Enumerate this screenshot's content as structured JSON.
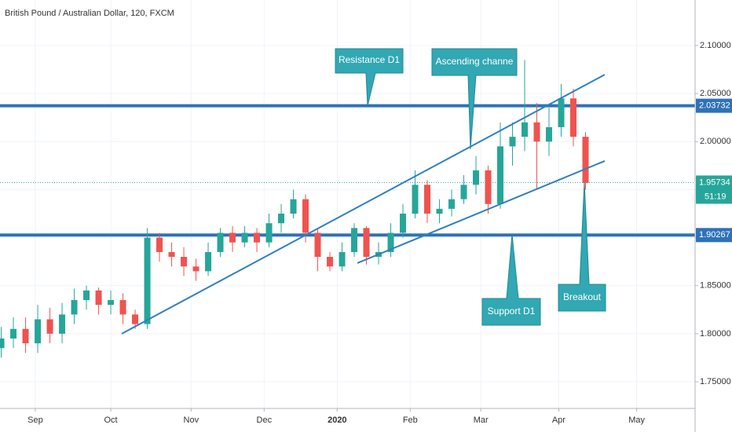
{
  "chart_data": {
    "type": "candlestick",
    "title": "British Pound / Australian Dollar, 120, FXCM",
    "up_color": "#26a69a",
    "down_color": "#ef5350",
    "x": [
      -14,
      -9,
      -4,
      1,
      6,
      11,
      16,
      21,
      26,
      31,
      36,
      41,
      46,
      51,
      56,
      61,
      66,
      71,
      76,
      81,
      86,
      91,
      96,
      101,
      106,
      111,
      116,
      121,
      126,
      131,
      136,
      141,
      146,
      151,
      156,
      161,
      166,
      171,
      176,
      181,
      186,
      191,
      196,
      201,
      206,
      211,
      216,
      221,
      226
    ],
    "ohlc": [
      [
        1.785,
        1.807,
        1.775,
        1.795
      ],
      [
        1.795,
        1.817,
        1.785,
        1.805
      ],
      [
        1.805,
        1.817,
        1.78,
        1.79
      ],
      [
        1.79,
        1.83,
        1.78,
        1.815
      ],
      [
        1.815,
        1.827,
        1.79,
        1.8
      ],
      [
        1.8,
        1.832,
        1.79,
        1.82
      ],
      [
        1.82,
        1.847,
        1.81,
        1.835
      ],
      [
        1.835,
        1.85,
        1.825,
        1.845
      ],
      [
        1.845,
        1.848,
        1.82,
        1.83
      ],
      [
        1.83,
        1.845,
        1.82,
        1.835
      ],
      [
        1.835,
        1.842,
        1.81,
        1.82
      ],
      [
        1.82,
        1.825,
        1.805,
        1.81
      ],
      [
        1.81,
        1.91,
        1.805,
        1.9
      ],
      [
        1.9,
        1.905,
        1.875,
        1.885
      ],
      [
        1.885,
        1.895,
        1.87,
        1.88
      ],
      [
        1.88,
        1.89,
        1.86,
        1.87
      ],
      [
        1.87,
        1.878,
        1.855,
        1.865
      ],
      [
        1.865,
        1.895,
        1.86,
        1.885
      ],
      [
        1.885,
        1.91,
        1.88,
        1.905
      ],
      [
        1.905,
        1.912,
        1.885,
        1.895
      ],
      [
        1.895,
        1.912,
        1.89,
        1.905
      ],
      [
        1.905,
        1.91,
        1.885,
        1.895
      ],
      [
        1.895,
        1.925,
        1.89,
        1.915
      ],
      [
        1.915,
        1.935,
        1.905,
        1.925
      ],
      [
        1.925,
        1.95,
        1.92,
        1.94
      ],
      [
        1.94,
        1.945,
        1.895,
        1.905
      ],
      [
        1.905,
        1.91,
        1.865,
        1.88
      ],
      [
        1.88,
        1.885,
        1.865,
        1.87
      ],
      [
        1.87,
        1.895,
        1.865,
        1.885
      ],
      [
        1.885,
        1.915,
        1.88,
        1.91
      ],
      [
        1.91,
        1.912,
        1.872,
        1.88
      ],
      [
        1.88,
        1.895,
        1.872,
        1.885
      ],
      [
        1.885,
        1.915,
        1.88,
        1.905
      ],
      [
        1.905,
        1.935,
        1.9,
        1.925
      ],
      [
        1.925,
        1.97,
        1.92,
        1.955
      ],
      [
        1.955,
        1.96,
        1.915,
        1.925
      ],
      [
        1.925,
        1.94,
        1.915,
        1.93
      ],
      [
        1.93,
        1.95,
        1.922,
        1.94
      ],
      [
        1.94,
        1.965,
        1.935,
        1.955
      ],
      [
        1.955,
        1.985,
        1.945,
        1.97
      ],
      [
        1.97,
        1.975,
        1.925,
        1.935
      ],
      [
        1.935,
        2.02,
        1.93,
        1.995
      ],
      [
        1.995,
        2.02,
        1.975,
        2.005
      ],
      [
        2.005,
        2.085,
        1.99,
        2.02
      ],
      [
        2.02,
        2.04,
        1.95,
        2.0
      ],
      [
        2.0,
        2.035,
        1.985,
        2.015
      ],
      [
        2.015,
        2.06,
        2.005,
        2.045
      ],
      [
        2.045,
        2.055,
        1.995,
        2.005
      ],
      [
        2.005,
        2.01,
        1.95,
        1.957
      ]
    ],
    "xlim": [
      -14.5,
      271
    ],
    "xticks": [
      {
        "value": 0,
        "label": "Sep"
      },
      {
        "value": 31,
        "label": "Oct"
      },
      {
        "value": 64,
        "label": "Nov"
      },
      {
        "value": 94,
        "label": "Dec"
      },
      {
        "value": 124,
        "label": "2020"
      },
      {
        "value": 154,
        "label": "Feb"
      },
      {
        "value": 183,
        "label": "Mar"
      },
      {
        "value": 215,
        "label": "Apr"
      },
      {
        "value": 247,
        "label": "May"
      }
    ],
    "ylim": [
      1.7222,
      2.1474
    ],
    "yticks": [
      {
        "value": 1.75,
        "label": "1.75000"
      },
      {
        "value": 1.8,
        "label": "1.80000"
      },
      {
        "value": 1.85,
        "label": "1.85000"
      },
      {
        "value": 1.9,
        "label": "1.90000"
      },
      {
        "value": 1.95,
        "label": "1.95000"
      },
      {
        "value": 2.0,
        "label": "2.00000"
      },
      {
        "value": 2.05,
        "label": "2.05000"
      },
      {
        "value": 2.1,
        "label": "2.10000"
      }
    ],
    "grid": true,
    "levels": [
      {
        "value": 2.03732,
        "color": "#2e72b8"
      },
      {
        "value": 1.90267,
        "color": "#2e72b8"
      }
    ],
    "last_price": 1.95734,
    "last_price_color": "#26a69a",
    "countdown": "51:19",
    "trendlines": [
      {
        "x": [
          35.5,
          233.9
        ],
        "y": [
          1.8,
          2.0697
        ],
        "color": "#2f7fc1"
      },
      {
        "x": [
          132.3,
          233.9
        ],
        "y": [
          1.8735,
          1.9798
        ],
        "color": "#2f7fc1"
      }
    ],
    "annotations": [
      "Resistance D1",
      "Ascending channe",
      "Support D1",
      "Breakout"
    ]
  }
}
